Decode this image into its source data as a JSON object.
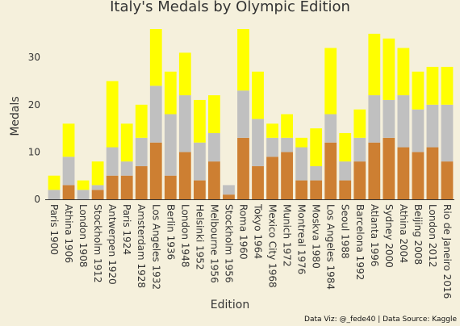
{
  "chart_data": {
    "type": "bar",
    "stacked": true,
    "title": "Italy's Medals by Olympic Edition",
    "xlabel": "Edition",
    "ylabel": "Medals",
    "ylim": [
      0,
      36
    ],
    "yticks": [
      0,
      10,
      20,
      30
    ],
    "grid": false,
    "categories": [
      "Paris 1900",
      "Athina 1906",
      "London 1908",
      "Stockholm 1912",
      "Antwerpen 1920",
      "Paris 1924",
      "Amsterdam 1928",
      "Los Angeles 1932",
      "Berlin 1936",
      "London 1948",
      "Helsinki 1952",
      "Melbourne 1956",
      "Stockholm 1956",
      "Roma 1960",
      "Tokyo 1964",
      "Mexico City 1968",
      "Munich 1972",
      "Montreal 1976",
      "Moskva 1980",
      "Los Angeles 1984",
      "Seoul 1988",
      "Barcelona 1992",
      "Atlanta 1996",
      "Sydney 2000",
      "Athina 2004",
      "Beijing 2008",
      "London 2012",
      "Rio de Janeiro 2016"
    ],
    "series": [
      {
        "color": "#cd7f32",
        "values": [
          0,
          3,
          0,
          2,
          5,
          5,
          7,
          12,
          5,
          10,
          4,
          8,
          1,
          13,
          7,
          9,
          10,
          4,
          4,
          12,
          4,
          8,
          12,
          13,
          11,
          10,
          11,
          8
        ]
      },
      {
        "color": "#c0c0c0",
        "values": [
          2,
          6,
          2,
          1,
          6,
          3,
          6,
          12,
          13,
          12,
          8,
          6,
          2,
          10,
          10,
          4,
          3,
          7,
          3,
          6,
          4,
          5,
          10,
          8,
          11,
          9,
          9,
          12
        ]
      },
      {
        "color": "#ffff00",
        "values": [
          3,
          7,
          2,
          5,
          14,
          8,
          7,
          12,
          9,
          9,
          9,
          8,
          0,
          13,
          10,
          3,
          5,
          2,
          8,
          14,
          6,
          6,
          13,
          13,
          10,
          8,
          8,
          8
        ]
      }
    ]
  },
  "credit": "Data Viz: @_fede40 | Data Source: Kaggle"
}
